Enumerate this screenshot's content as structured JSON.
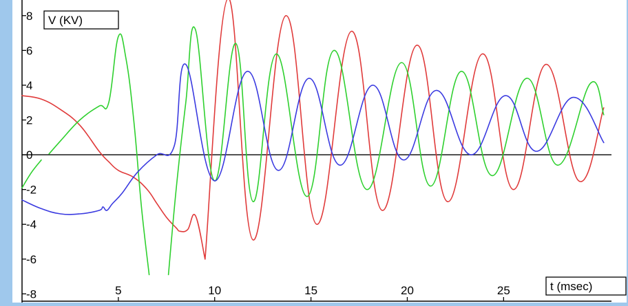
{
  "chart_data": {
    "type": "line",
    "title": "",
    "ylabel": "V (KV)",
    "xlabel": "t (msec)",
    "xlim": [
      0,
      30.6
    ],
    "ylim": [
      -8.5,
      8.9
    ],
    "xticks": [
      5,
      10,
      15,
      20,
      25
    ],
    "xtick_labels": [
      "5",
      "10",
      "15",
      "20",
      "25"
    ],
    "yticks": [
      -8,
      -6,
      -4,
      -2,
      0,
      2,
      4,
      6,
      8
    ],
    "ytick_labels": [
      "-8",
      "-6",
      "-4",
      "-2",
      "0",
      "2",
      "4",
      "6",
      "8"
    ],
    "grid": false,
    "legend": "none",
    "series": [
      {
        "color": "#e03a3a",
        "segments": [
          [
            [
              0,
              3.4
            ],
            [
              1,
              3.2
            ],
            [
              2,
              2.6
            ],
            [
              3,
              1.7
            ],
            [
              4,
              0.2
            ],
            [
              4.5,
              -0.4
            ],
            [
              5,
              -0.9
            ],
            [
              5.8,
              -1.3
            ],
            [
              6.5,
              -2.0
            ],
            [
              7,
              -2.8
            ],
            [
              7.5,
              -3.6
            ],
            [
              8,
              -4.2
            ],
            [
              8.2,
              -4.4
            ],
            [
              8.6,
              -4.3
            ],
            [
              9.0,
              -3.5
            ],
            [
              9.5,
              -6.0
            ]
          ],
          [
            [
              9.5,
              -6.0
            ],
            [
              10.7,
              9.0
            ],
            [
              12.0,
              -4.9
            ],
            [
              13.7,
              8.0
            ],
            [
              15.3,
              -4.0
            ],
            [
              17.1,
              7.1
            ],
            [
              18.7,
              -3.2
            ],
            [
              20.5,
              6.3
            ],
            [
              22.1,
              -2.7
            ],
            [
              23.9,
              5.8
            ],
            [
              25.5,
              -2.0
            ],
            [
              27.2,
              5.2
            ],
            [
              28.9,
              -1.5
            ],
            [
              30.2,
              2.7
            ]
          ]
        ]
      },
      {
        "color": "#2ed02e",
        "segments": [
          [
            [
              0,
              -1.9
            ],
            [
              0.5,
              -1.0
            ],
            [
              1.0,
              -0.3
            ]
          ],
          [
            [
              1.4,
              0.05
            ],
            [
              2,
              0.8
            ],
            [
              3,
              2.0
            ],
            [
              4,
              2.8
            ],
            [
              4.5,
              3.0
            ],
            [
              5,
              6.8
            ],
            [
              5.4,
              5.5
            ],
            [
              5.8,
              2.0
            ],
            [
              6.2,
              -3.0
            ],
            [
              6.6,
              -6.9
            ]
          ],
          [
            [
              7.6,
              -6.9
            ],
            [
              8.0,
              -2.0
            ],
            [
              8.5,
              3.0
            ],
            [
              9.0,
              7.2
            ],
            [
              10.0,
              -1.5
            ],
            [
              11.1,
              6.4
            ],
            [
              12.0,
              -2.7
            ],
            [
              13.2,
              5.8
            ],
            [
              14.8,
              -2.4
            ],
            [
              16.2,
              6.0
            ],
            [
              17.9,
              -2.0
            ],
            [
              19.7,
              5.3
            ],
            [
              21.2,
              -1.8
            ],
            [
              22.8,
              4.8
            ],
            [
              24.4,
              -1.2
            ],
            [
              26.2,
              4.4
            ],
            [
              27.8,
              -0.6
            ],
            [
              29.5,
              4.1
            ],
            [
              30.2,
              2.3
            ]
          ]
        ]
      },
      {
        "color": "#3a3ae0",
        "segments": [
          [
            [
              0,
              -2.6
            ],
            [
              1,
              -3.1
            ],
            [
              2,
              -3.4
            ],
            [
              3,
              -3.4
            ],
            [
              4,
              -3.2
            ],
            [
              4.2,
              -3.0
            ],
            [
              4.4,
              -3.2
            ],
            [
              4.7,
              -2.8
            ],
            [
              5.2,
              -2.2
            ],
            [
              6,
              -1.0
            ],
            [
              7,
              0.0
            ],
            [
              7.9,
              0.5
            ],
            [
              8.5,
              5.2
            ],
            [
              10.0,
              -1.5
            ],
            [
              11.7,
              4.8
            ],
            [
              13.3,
              -0.9
            ],
            [
              14.9,
              4.4
            ],
            [
              16.5,
              -0.6
            ],
            [
              18.2,
              4.0
            ],
            [
              19.8,
              -0.3
            ],
            [
              21.5,
              3.7
            ],
            [
              23.3,
              0.0
            ],
            [
              25.1,
              3.4
            ],
            [
              26.7,
              0.2
            ],
            [
              28.6,
              3.3
            ],
            [
              30.2,
              0.7
            ]
          ]
        ]
      }
    ]
  }
}
